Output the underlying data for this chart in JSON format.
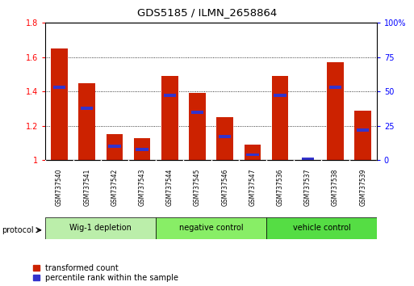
{
  "title": "GDS5185 / ILMN_2658864",
  "samples": [
    "GSM737540",
    "GSM737541",
    "GSM737542",
    "GSM737543",
    "GSM737544",
    "GSM737545",
    "GSM737546",
    "GSM737547",
    "GSM737536",
    "GSM737537",
    "GSM737538",
    "GSM737539"
  ],
  "red_values": [
    1.65,
    1.45,
    1.15,
    1.13,
    1.49,
    1.39,
    1.25,
    1.09,
    1.49,
    1.0,
    1.57,
    1.29
  ],
  "blue_values_pct": [
    53,
    38,
    10,
    8,
    47,
    35,
    17,
    4,
    47,
    1,
    53,
    22
  ],
  "ylim_left": [
    1.0,
    1.8
  ],
  "ylim_right": [
    0,
    100
  ],
  "yticks_left": [
    1.0,
    1.2,
    1.4,
    1.6,
    1.8
  ],
  "ytick_labels_left": [
    "1",
    "1.2",
    "1.4",
    "1.6",
    "1.8"
  ],
  "yticks_right": [
    0,
    25,
    50,
    75,
    100
  ],
  "ytick_labels_right": [
    "0",
    "25",
    "50",
    "75",
    "100%"
  ],
  "groups": [
    {
      "label": "Wig-1 depletion",
      "start": 0,
      "end": 3,
      "color": "#bbeeaa"
    },
    {
      "label": "negative control",
      "start": 4,
      "end": 7,
      "color": "#88ee66"
    },
    {
      "label": "vehicle control",
      "start": 8,
      "end": 11,
      "color": "#55dd44"
    }
  ],
  "bar_width": 0.6,
  "red_color": "#cc2200",
  "blue_color": "#3333cc",
  "cell_color": "#d4d4d4",
  "cell_edge_color": "#ffffff",
  "plot_bg": "#ffffff",
  "legend_red": "transformed count",
  "legend_blue": "percentile rank within the sample",
  "protocol_label": "protocol",
  "grid_color": "#000000",
  "grid_ls": "dotted",
  "grid_lw": 0.6
}
